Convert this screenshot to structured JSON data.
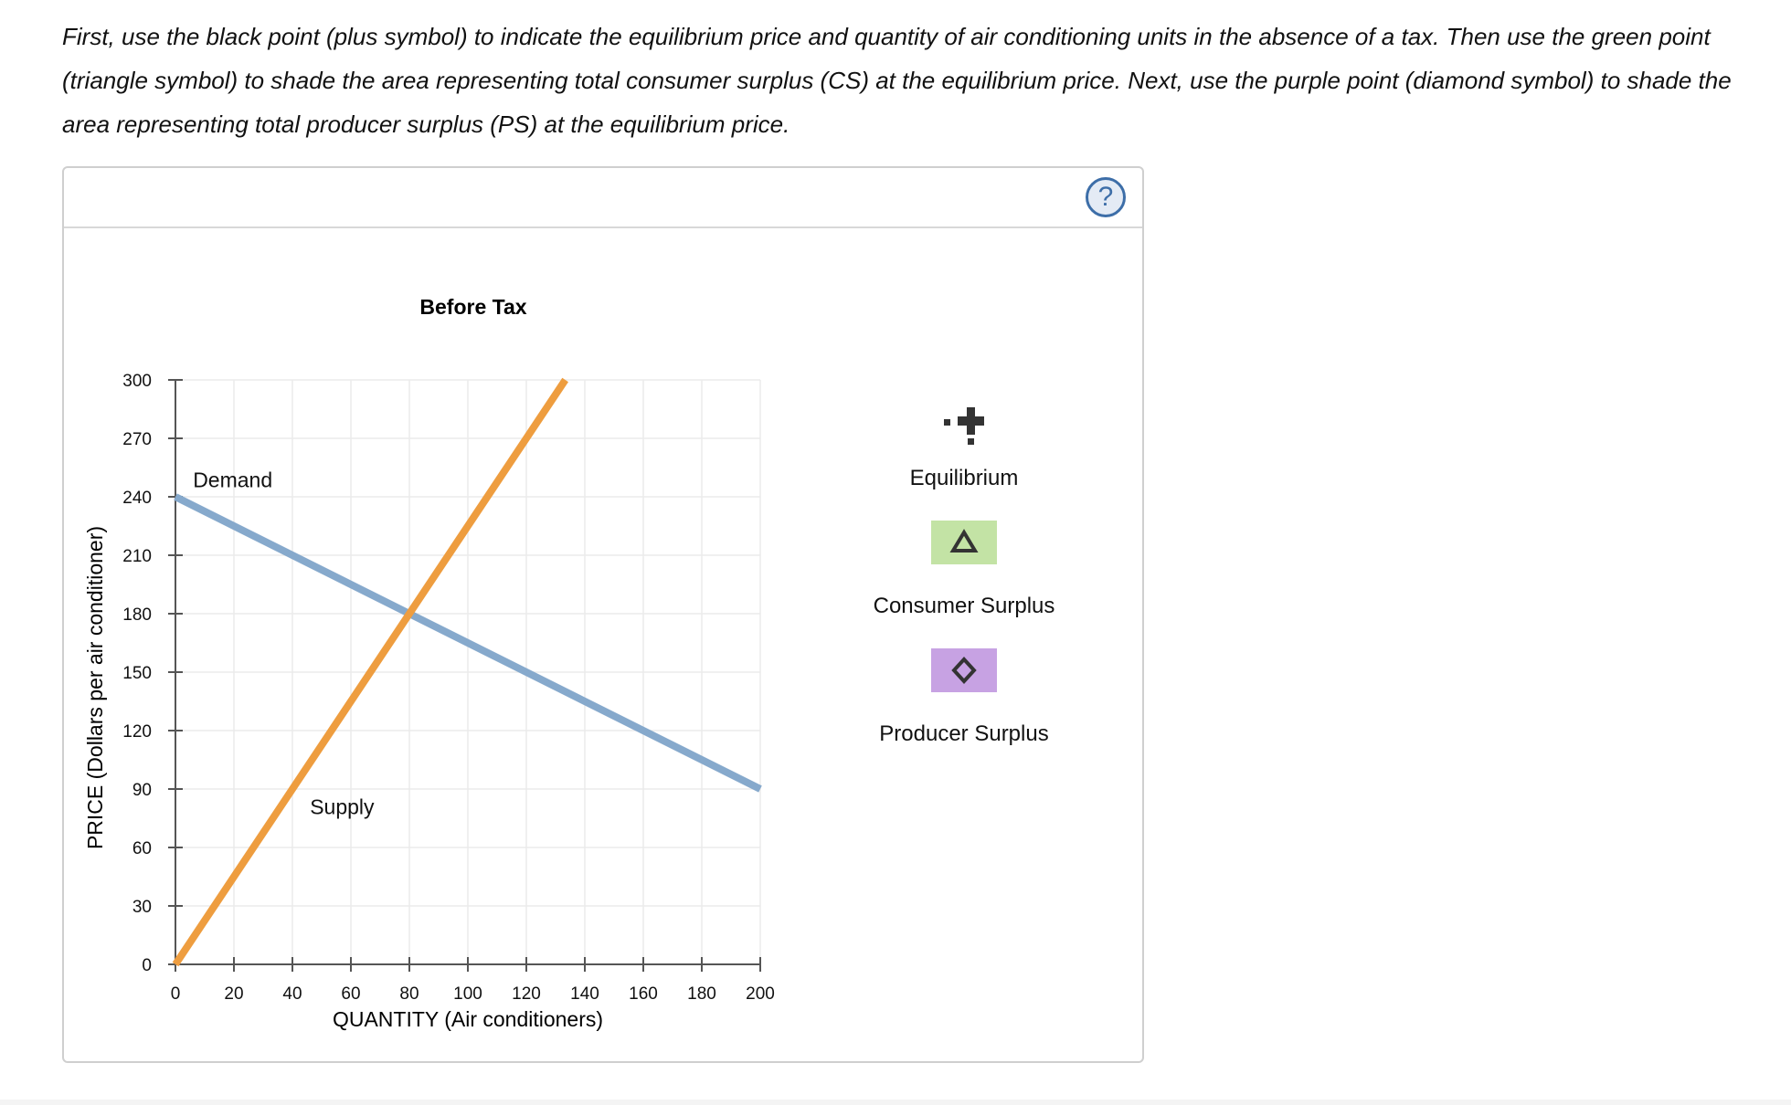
{
  "instructions": "First, use the black point (plus symbol) to indicate the equilibrium price and quantity of air conditioning units in the absence of a tax. Then use the green point (triangle symbol) to shade the area representing total consumer surplus (CS) at the equilibrium price. Next, use the purple point (diamond symbol) to shade the area representing total producer surplus (PS) at the equilibrium price.",
  "help": {
    "symbol": "?"
  },
  "tools": {
    "equilibrium": {
      "label": "Equilibrium",
      "color": "#333333"
    },
    "consumer_surplus": {
      "label": "Consumer Surplus",
      "color": "#c3e3a5"
    },
    "producer_surplus": {
      "label": "Producer Surplus",
      "color": "#c7a2e3"
    }
  },
  "chart_data": {
    "type": "line",
    "title": "Before Tax",
    "xlabel": "QUANTITY (Air conditioners)",
    "ylabel": "PRICE (Dollars per air conditioner)",
    "xlim": [
      0,
      200
    ],
    "ylim": [
      0,
      300
    ],
    "xticks": [
      0,
      20,
      40,
      60,
      80,
      100,
      120,
      140,
      160,
      180,
      200
    ],
    "yticks": [
      0,
      30,
      60,
      90,
      120,
      150,
      180,
      210,
      240,
      270,
      300
    ],
    "grid": true,
    "series": [
      {
        "name": "Demand",
        "color": "#86a9cc",
        "points": [
          [
            0,
            240
          ],
          [
            200,
            90
          ]
        ],
        "label_at": [
          6,
          245
        ]
      },
      {
        "name": "Supply",
        "color": "#ee9d3f",
        "points": [
          [
            0,
            0
          ],
          [
            133.33,
            300
          ]
        ],
        "label_at": [
          46,
          77
        ]
      }
    ]
  }
}
